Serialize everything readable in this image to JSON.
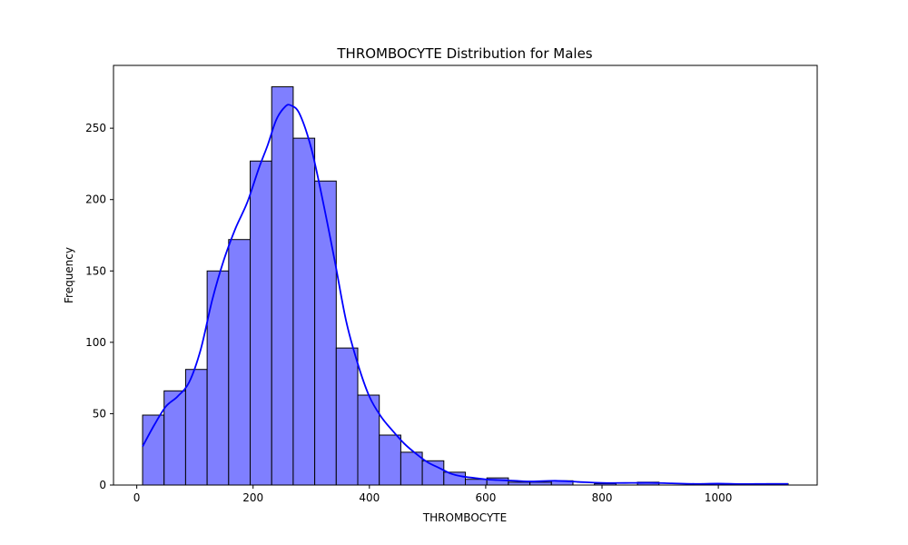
{
  "chart_data": {
    "type": "bar",
    "title": "THROMBOCYTE Distribution for Males",
    "xlabel": "THROMBOCYTE",
    "ylabel": "Frequency",
    "xlim": [
      -40,
      1170
    ],
    "ylim": [
      0,
      294
    ],
    "grid": false,
    "legend": false,
    "bar_color": "#7f7fff",
    "bar_edge_color": "#000000",
    "kde_color": "#0000ff",
    "x_ticks": [
      0,
      200,
      400,
      600,
      800,
      1000
    ],
    "y_ticks": [
      0,
      50,
      100,
      150,
      200,
      250
    ],
    "bins": [
      {
        "x0": 10,
        "x1": 47,
        "count": 49
      },
      {
        "x0": 47,
        "x1": 84,
        "count": 66
      },
      {
        "x0": 84,
        "x1": 121,
        "count": 81
      },
      {
        "x0": 121,
        "x1": 158,
        "count": 150
      },
      {
        "x0": 158,
        "x1": 195,
        "count": 172
      },
      {
        "x0": 195,
        "x1": 232,
        "count": 227
      },
      {
        "x0": 232,
        "x1": 269,
        "count": 279
      },
      {
        "x0": 269,
        "x1": 306,
        "count": 243
      },
      {
        "x0": 306,
        "x1": 343,
        "count": 213
      },
      {
        "x0": 343,
        "x1": 380,
        "count": 96
      },
      {
        "x0": 380,
        "x1": 417,
        "count": 63
      },
      {
        "x0": 417,
        "x1": 454,
        "count": 35
      },
      {
        "x0": 454,
        "x1": 491,
        "count": 23
      },
      {
        "x0": 491,
        "x1": 528,
        "count": 17
      },
      {
        "x0": 528,
        "x1": 565,
        "count": 9
      },
      {
        "x0": 565,
        "x1": 602,
        "count": 4
      },
      {
        "x0": 602,
        "x1": 639,
        "count": 5
      },
      {
        "x0": 639,
        "x1": 676,
        "count": 2
      },
      {
        "x0": 676,
        "x1": 713,
        "count": 2
      },
      {
        "x0": 713,
        "x1": 750,
        "count": 3
      },
      {
        "x0": 750,
        "x1": 787,
        "count": 0
      },
      {
        "x0": 787,
        "x1": 824,
        "count": 1
      },
      {
        "x0": 824,
        "x1": 861,
        "count": 0
      },
      {
        "x0": 861,
        "x1": 898,
        "count": 2
      },
      {
        "x0": 898,
        "x1": 935,
        "count": 0
      },
      {
        "x0": 935,
        "x1": 972,
        "count": 0
      },
      {
        "x0": 972,
        "x1": 1009,
        "count": 1
      },
      {
        "x0": 1009,
        "x1": 1046,
        "count": 0
      },
      {
        "x0": 1046,
        "x1": 1083,
        "count": 0
      },
      {
        "x0": 1083,
        "x1": 1120,
        "count": 1
      }
    ],
    "kde": [
      [
        10,
        27
      ],
      [
        30,
        42
      ],
      [
        50,
        55
      ],
      [
        70,
        62
      ],
      [
        90,
        72
      ],
      [
        110,
        95
      ],
      [
        130,
        130
      ],
      [
        150,
        158
      ],
      [
        170,
        180
      ],
      [
        190,
        198
      ],
      [
        210,
        222
      ],
      [
        225,
        238
      ],
      [
        240,
        256
      ],
      [
        255,
        265
      ],
      [
        265,
        266
      ],
      [
        280,
        260
      ],
      [
        300,
        236
      ],
      [
        320,
        199
      ],
      [
        340,
        158
      ],
      [
        360,
        115
      ],
      [
        380,
        85
      ],
      [
        400,
        62
      ],
      [
        420,
        48
      ],
      [
        440,
        38
      ],
      [
        460,
        29
      ],
      [
        480,
        22
      ],
      [
        500,
        16
      ],
      [
        520,
        12
      ],
      [
        540,
        8
      ],
      [
        560,
        6
      ],
      [
        580,
        5
      ],
      [
        600,
        4
      ],
      [
        620,
        3.5
      ],
      [
        650,
        3
      ],
      [
        680,
        2.5
      ],
      [
        720,
        3
      ],
      [
        760,
        2.2
      ],
      [
        800,
        1.5
      ],
      [
        850,
        1.5
      ],
      [
        880,
        1.6
      ],
      [
        920,
        1.2
      ],
      [
        960,
        0.8
      ],
      [
        1000,
        1
      ],
      [
        1040,
        0.7
      ],
      [
        1080,
        0.8
      ],
      [
        1120,
        0.8
      ]
    ]
  }
}
